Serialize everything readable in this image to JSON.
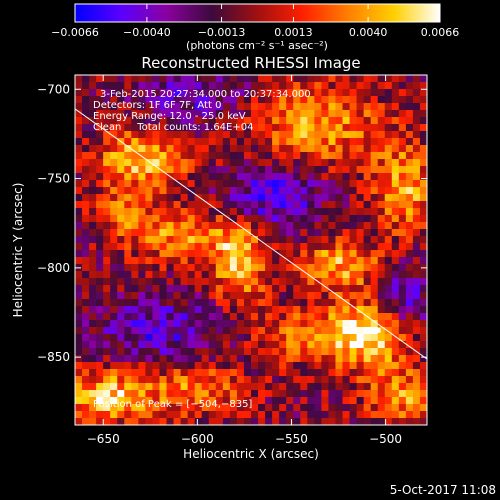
{
  "chart_data": {
    "type": "heatmap",
    "title": "Reconstructed RHESSI Image",
    "xlabel": "Heliocentric X (arcsec)",
    "ylabel": "Heliocentric Y (arcsec)",
    "xlim": [
      -665,
      -478
    ],
    "ylim": [
      -888,
      -692
    ],
    "xticks": [
      -650,
      -600,
      -550,
      -500
    ],
    "xtick_labels": [
      "−650",
      "−600",
      "−550",
      "−500"
    ],
    "yticks": [
      -700,
      -750,
      -800,
      -850
    ],
    "ytick_labels": [
      "−700",
      "−750",
      "−800",
      "−850"
    ],
    "colorbar": {
      "range": [
        -0.0066,
        0.0066
      ],
      "ticks": [
        -0.0066,
        -0.004,
        -0.0013,
        0.0013,
        0.004,
        0.0066
      ],
      "tick_labels": [
        "−0.0066",
        "−0.0040",
        "−0.0013",
        "0.0013",
        "0.0040",
        "0.0066"
      ],
      "units_label": "(photons cm⁻² s⁻¹ asec⁻²)",
      "colors": [
        "#0000ff",
        "#5a00ff",
        "#8a00a0",
        "#3c0a3c",
        "#a01010",
        "#ff2000",
        "#ff8000",
        "#ffd000",
        "#ffffff"
      ]
    },
    "annotations": [
      "3-Feb-2015 20:27:34.000 to 20:37:34.000",
      "Detectors: 1F 6F 7F, Att 0",
      "Energy Range: 12.0 - 25.0 keV",
      "Clean     Total counts: 1.64E+04",
      "Position of Peak = [−504,−835]"
    ],
    "limb_line": {
      "from": [
        -665,
        -711
      ],
      "to": [
        -478,
        -851
      ]
    },
    "peak": {
      "x": -504,
      "y": -835
    },
    "blobs": [
      {
        "x": -630,
        "y": -740,
        "sx": 18,
        "sy": 12,
        "amp": 0.0055
      },
      {
        "x": -640,
        "y": -768,
        "sx": 10,
        "sy": 8,
        "amp": 0.0035
      },
      {
        "x": -610,
        "y": -782,
        "sx": 20,
        "sy": 10,
        "amp": 0.0045
      },
      {
        "x": -578,
        "y": -797,
        "sx": 10,
        "sy": 16,
        "amp": 0.006
      },
      {
        "x": -538,
        "y": -720,
        "sx": 24,
        "sy": 16,
        "amp": 0.005
      },
      {
        "x": -525,
        "y": -798,
        "sx": 16,
        "sy": 10,
        "amp": 0.005
      },
      {
        "x": -545,
        "y": -838,
        "sx": 18,
        "sy": 10,
        "amp": 0.004
      },
      {
        "x": -508,
        "y": -838,
        "sx": 16,
        "sy": 14,
        "amp": 0.0066
      },
      {
        "x": -490,
        "y": -755,
        "sx": 12,
        "sy": 18,
        "amp": 0.005
      },
      {
        "x": -648,
        "y": -872,
        "sx": 18,
        "sy": 10,
        "amp": 0.006
      },
      {
        "x": -600,
        "y": -868,
        "sx": 18,
        "sy": 10,
        "amp": 0.004
      },
      {
        "x": -490,
        "y": -872,
        "sx": 14,
        "sy": 10,
        "amp": 0.0045
      },
      {
        "x": -600,
        "y": -705,
        "sx": 20,
        "sy": 10,
        "amp": -0.003
      },
      {
        "x": -560,
        "y": -760,
        "sx": 18,
        "sy": 14,
        "amp": -0.004
      },
      {
        "x": -490,
        "y": -818,
        "sx": 10,
        "sy": 14,
        "amp": -0.004
      },
      {
        "x": -620,
        "y": -835,
        "sx": 22,
        "sy": 12,
        "amp": -0.0035
      }
    ]
  },
  "footer": {
    "timestamp": "5-Oct-2017 11:08"
  }
}
